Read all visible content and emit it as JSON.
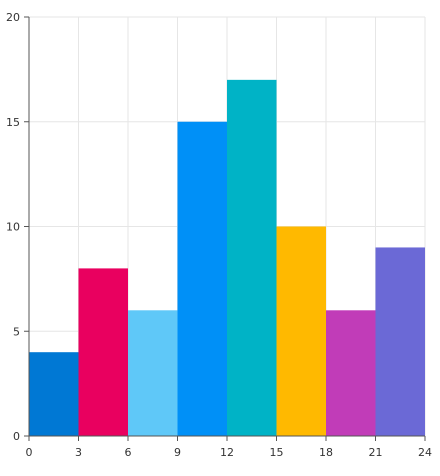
{
  "chart_data": {
    "type": "bar",
    "title": "",
    "xlabel": "",
    "ylabel": "",
    "bins": [
      {
        "x0": 0,
        "x1": 3,
        "value": 4,
        "color": "#0078d4"
      },
      {
        "x0": 3,
        "x1": 6,
        "value": 8,
        "color": "#e9005f"
      },
      {
        "x0": 6,
        "x1": 9,
        "value": 6,
        "color": "#5fc8f8"
      },
      {
        "x0": 9,
        "x1": 12,
        "value": 15,
        "color": "#0090f7"
      },
      {
        "x0": 12,
        "x1": 15,
        "value": 17,
        "color": "#00b3c6"
      },
      {
        "x0": 15,
        "x1": 18,
        "value": 10,
        "color": "#ffb900"
      },
      {
        "x0": 18,
        "x1": 21,
        "value": 6,
        "color": "#c13cb8"
      },
      {
        "x0": 21,
        "x1": 24,
        "value": 9,
        "color": "#6b69d6"
      }
    ],
    "xlim": [
      0,
      24
    ],
    "ylim": [
      0,
      20
    ],
    "x_ticks": [
      0,
      3,
      6,
      9,
      12,
      15,
      18,
      21,
      24
    ],
    "y_ticks": [
      0,
      5,
      10,
      15,
      20
    ],
    "grid": true,
    "legend": "none"
  }
}
